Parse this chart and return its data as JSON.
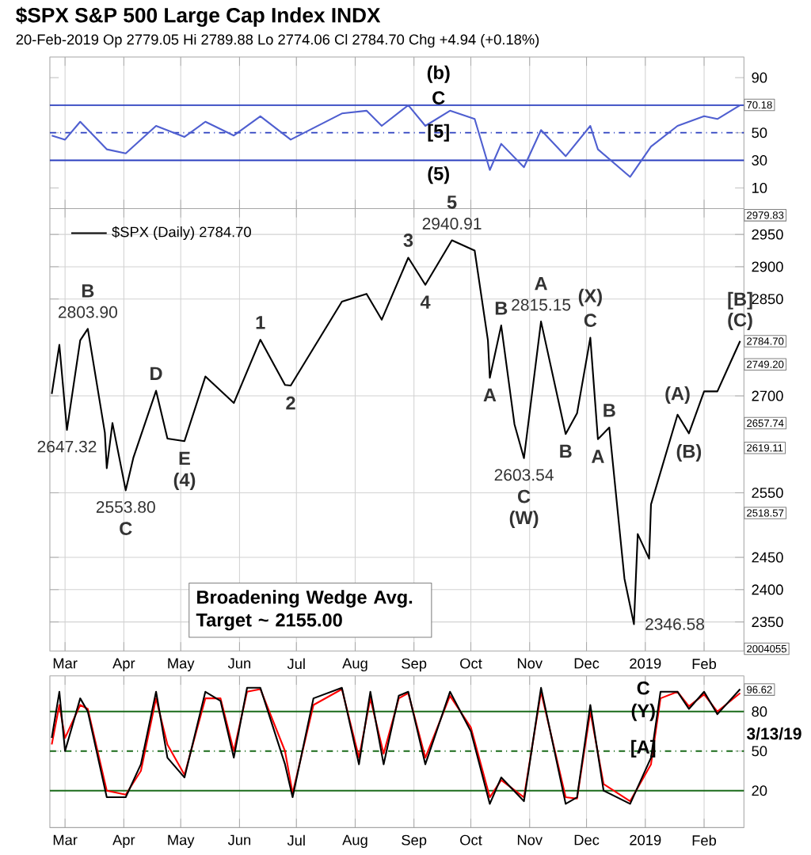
{
  "chart_data": [
    {
      "type": "line",
      "title": "$SPX S&P 500 Large Cap Index INDX",
      "subtitle": "20-Feb-2019 Op 2779.05 Hi 2789.88 Lo 2774.06 Cl 2784.70 Chg +4.94 (+0.18%)",
      "xlim": [
        "2018-02-21",
        "2019-02-22"
      ],
      "xticks": [
        {
          "value": "2018-03-01",
          "label": null
        },
        {
          "value": "2018-04-01",
          "label": null
        },
        {
          "value": "2018-05-01",
          "label": null
        },
        {
          "value": "2018-06-01",
          "label": null
        },
        {
          "value": "2018-07-01",
          "label": null
        },
        {
          "value": "2018-08-01",
          "label": null
        },
        {
          "value": "2018-09-01",
          "label": null
        },
        {
          "value": "2018-10-01",
          "label": null
        },
        {
          "value": "2018-11-01",
          "label": null
        },
        {
          "value": "2018-12-01",
          "label": null
        },
        {
          "value": "2019-01-01",
          "label": null
        },
        {
          "value": "2019-02-01",
          "label": null
        }
      ],
      "ylim": [
        -5,
        105
      ],
      "yticks": [
        10,
        30,
        50,
        70,
        90
      ],
      "tick_labels": "y",
      "grid": "x",
      "x": [
        "2018-02-22",
        "2018-03-01",
        "2018-03-09",
        "2018-03-23",
        "2018-04-02",
        "2018-04-18",
        "2018-05-03",
        "2018-05-14",
        "2018-05-29",
        "2018-06-12",
        "2018-06-28",
        "2018-07-25",
        "2018-08-07",
        "2018-08-15",
        "2018-08-29",
        "2018-09-07",
        "2018-09-20",
        "2018-10-03",
        "2018-10-11",
        "2018-10-17",
        "2018-10-29",
        "2018-11-07",
        "2018-11-20",
        "2018-12-03",
        "2018-12-07",
        "2018-12-24",
        "2019-01-04",
        "2019-01-18",
        "2019-02-01",
        "2019-02-08",
        "2019-02-20"
      ],
      "series": [
        {
          "color": "#4f5fd0",
          "values": [
            48,
            45,
            58,
            38,
            35,
            55,
            47,
            58,
            48,
            62,
            45,
            64,
            66,
            55,
            70,
            55,
            66,
            60,
            23,
            42,
            25,
            52,
            33,
            55,
            38,
            18,
            40,
            55,
            62,
            60,
            70
          ]
        }
      ],
      "ref_lines": [
        {
          "axis": "y",
          "value": 70,
          "color": "#2b3fbf"
        },
        {
          "axis": "y",
          "value": 50,
          "color": "#2b3fbf",
          "line_style": "dashed"
        },
        {
          "axis": "y",
          "value": 30,
          "color": "#2b3fbf"
        }
      ],
      "annotations": [
        "(b)",
        "C",
        "[5]",
        "(5)",
        {
          "text": "70.18",
          "x": "2019-02-22",
          "y": 70.18
        }
      ]
    },
    {
      "type": "line",
      "legend": "top left",
      "xlim": [
        "2018-02-21",
        "2019-02-22"
      ],
      "xticks": [
        {
          "value": "2018-03-01",
          "label": "Mar"
        },
        {
          "value": "2018-04-01",
          "label": "Apr"
        },
        {
          "value": "2018-05-01",
          "label": "May"
        },
        {
          "value": "2018-06-01",
          "label": "Jun"
        },
        {
          "value": "2018-07-01",
          "label": "Jul"
        },
        {
          "value": "2018-08-01",
          "label": "Aug"
        },
        {
          "value": "2018-09-01",
          "label": "Sep"
        },
        {
          "value": "2018-10-01",
          "label": "Oct"
        },
        {
          "value": "2018-11-01",
          "label": "Nov"
        },
        {
          "value": "2018-12-01",
          "label": "Dec"
        },
        {
          "value": "2019-01-01",
          "label": "2019"
        },
        {
          "value": "2019-02-01",
          "label": "Feb"
        }
      ],
      "ylim": [
        2305,
        2990
      ],
      "yticks": [
        2350,
        2400,
        2450,
        2550,
        2700,
        2850,
        2900,
        2950
      ],
      "grid": true,
      "x": [
        "2018-02-22",
        "2018-02-26",
        "2018-03-02",
        "2018-03-09",
        "2018-03-13",
        "2018-03-22",
        "2018-03-23",
        "2018-03-26",
        "2018-04-02",
        "2018-04-06",
        "2018-04-18",
        "2018-04-24",
        "2018-05-03",
        "2018-05-14",
        "2018-05-29",
        "2018-06-12",
        "2018-06-25",
        "2018-06-28",
        "2018-07-25",
        "2018-08-07",
        "2018-08-15",
        "2018-08-29",
        "2018-09-07",
        "2018-09-21",
        "2018-10-03",
        "2018-10-10",
        "2018-10-11",
        "2018-10-17",
        "2018-10-24",
        "2018-10-29",
        "2018-11-07",
        "2018-11-20",
        "2018-11-26",
        "2018-12-03",
        "2018-12-07",
        "2018-12-13",
        "2018-12-21",
        "2018-12-26",
        "2018-12-28",
        "2019-01-03",
        "2019-01-04",
        "2019-01-18",
        "2019-01-24",
        "2019-02-01",
        "2019-02-08",
        "2019-02-14",
        "2019-02-20"
      ],
      "series": [
        {
          "name": "$SPX (Daily) 2784.70",
          "color": "#000000",
          "values": [
            2703,
            2779,
            2647.32,
            2786,
            2803.9,
            2643,
            2588,
            2658,
            2553.8,
            2604,
            2708,
            2634,
            2630,
            2730,
            2689,
            2787,
            2717,
            2716,
            2846,
            2858,
            2818,
            2914,
            2872,
            2940.91,
            2925,
            2786,
            2728,
            2809,
            2656,
            2603.54,
            2815.15,
            2641,
            2673,
            2790,
            2633,
            2651,
            2417,
            2346.58,
            2486,
            2448,
            2532,
            2671,
            2642,
            2707,
            2707,
            2746,
            2785
          ]
        }
      ],
      "annotations": [
        "Broadening Wedge Avg. Target ~ 2155.00",
        "2004055",
        "2979.83",
        "2749.20",
        "2657.74",
        "2619.11",
        "2518.57",
        {
          "text": "2803.90",
          "x": "2018-03-13",
          "y": 2803.9
        },
        {
          "text": "B",
          "x": "2018-03-13",
          "y": 2803.9
        },
        {
          "text": "2647.32",
          "x": "2018-03-02",
          "y": 2647.32
        },
        {
          "text": "2553.80",
          "x": "2018-04-02",
          "y": 2553.8
        },
        {
          "text": "C",
          "x": "2018-04-02",
          "y": 2553.8
        },
        {
          "text": "D",
          "x": "2018-04-18",
          "y": 2708
        },
        {
          "text": "E",
          "x": "2018-05-03",
          "y": 2630
        },
        {
          "text": "(4)",
          "x": "2018-05-03",
          "y": 2630
        },
        {
          "text": "1",
          "x": "2018-06-12",
          "y": 2787
        },
        {
          "text": "2",
          "x": "2018-06-28",
          "y": 2716
        },
        {
          "text": "3",
          "x": "2018-08-29",
          "y": 2914
        },
        {
          "text": "4",
          "x": "2018-09-07",
          "y": 2872
        },
        {
          "text": "2940.91",
          "x": "2018-09-21",
          "y": 2940.91
        },
        {
          "text": "5",
          "x": "2018-09-21",
          "y": 2940.91
        },
        {
          "text": "A",
          "x": "2018-10-11",
          "y": 2728
        },
        {
          "text": "B",
          "x": "2018-10-17",
          "y": 2809
        },
        {
          "text": "2603.54",
          "x": "2018-10-29",
          "y": 2603.54
        },
        {
          "text": "C",
          "x": "2018-10-29",
          "y": 2603.54
        },
        {
          "text": "(W)",
          "x": "2018-10-29",
          "y": 2603.54
        },
        {
          "text": "2815.15",
          "x": "2018-11-07",
          "y": 2815.15
        },
        {
          "text": "A",
          "x": "2018-11-07",
          "y": 2815.15
        },
        {
          "text": "B",
          "x": "2018-11-20",
          "y": 2641
        },
        {
          "text": "C",
          "x": "2018-12-03",
          "y": 2790
        },
        {
          "text": "(X)",
          "x": "2018-12-03",
          "y": 2790
        },
        {
          "text": "A",
          "x": "2018-12-07",
          "y": 2633
        },
        {
          "text": "B",
          "x": "2018-12-13",
          "y": 2651
        },
        {
          "text": "2346.58",
          "x": "2018-12-26",
          "y": 2346.58
        },
        {
          "text": "(A)",
          "x": "2019-01-18",
          "y": 2671
        },
        {
          "text": "(B)",
          "x": "2019-01-24",
          "y": 2642
        },
        {
          "text": "(C)",
          "x": "2019-02-20",
          "y": 2785
        },
        {
          "text": "[B]",
          "x": "2019-02-20",
          "y": 2785
        },
        {
          "text": "2784.70",
          "x": "2019-02-22",
          "y": 2784.7
        }
      ]
    },
    {
      "type": "line",
      "xlim": [
        "2018-02-21",
        "2019-02-22"
      ],
      "xticks": [
        {
          "value": "2018-03-01",
          "label": "Mar"
        },
        {
          "value": "2018-04-01",
          "label": "Apr"
        },
        {
          "value": "2018-05-01",
          "label": "May"
        },
        {
          "value": "2018-06-01",
          "label": "Jun"
        },
        {
          "value": "2018-07-01",
          "label": "Jul"
        },
        {
          "value": "2018-08-01",
          "label": "Aug"
        },
        {
          "value": "2018-09-01",
          "label": "Sep"
        },
        {
          "value": "2018-10-01",
          "label": "Oct"
        },
        {
          "value": "2018-11-01",
          "label": "Nov"
        },
        {
          "value": "2018-12-01",
          "label": "Dec"
        },
        {
          "value": "2019-01-01",
          "label": "2019"
        },
        {
          "value": "2019-02-01",
          "label": "Feb"
        }
      ],
      "ylim": [
        -8,
        107
      ],
      "yticks": [
        20,
        50,
        80
      ],
      "grid": "x",
      "x": [
        "2018-02-22",
        "2018-02-26",
        "2018-03-01",
        "2018-03-09",
        "2018-03-13",
        "2018-03-23",
        "2018-04-02",
        "2018-04-10",
        "2018-04-18",
        "2018-04-24",
        "2018-05-03",
        "2018-05-14",
        "2018-05-22",
        "2018-05-29",
        "2018-06-05",
        "2018-06-12",
        "2018-06-25",
        "2018-06-29",
        "2018-07-10",
        "2018-07-25",
        "2018-08-03",
        "2018-08-09",
        "2018-08-16",
        "2018-08-24",
        "2018-08-29",
        "2018-09-07",
        "2018-09-20",
        "2018-10-01",
        "2018-10-11",
        "2018-10-17",
        "2018-10-29",
        "2018-11-07",
        "2018-11-20",
        "2018-11-26",
        "2018-12-03",
        "2018-12-10",
        "2018-12-24",
        "2019-01-04",
        "2019-01-09",
        "2019-01-18",
        "2019-01-24",
        "2019-02-01",
        "2019-02-08",
        "2019-02-20"
      ],
      "series": [
        {
          "color": "#ff0000",
          "values": [
            55,
            85,
            60,
            85,
            82,
            20,
            17,
            35,
            90,
            55,
            32,
            90,
            90,
            50,
            95,
            97,
            50,
            18,
            85,
            97,
            45,
            90,
            48,
            90,
            94,
            45,
            92,
            68,
            15,
            28,
            15,
            95,
            15,
            14,
            80,
            25,
            12,
            40,
            90,
            95,
            84,
            93,
            80,
            94
          ]
        },
        {
          "color": "#000000",
          "values": [
            60,
            95,
            50,
            90,
            80,
            15,
            15,
            40,
            95,
            45,
            30,
            95,
            88,
            45,
            98,
            98,
            40,
            15,
            90,
            98,
            40,
            95,
            40,
            92,
            95,
            40,
            95,
            65,
            10,
            30,
            12,
            98,
            10,
            15,
            85,
            20,
            10,
            45,
            95,
            95,
            82,
            95,
            78,
            97
          ]
        }
      ],
      "ref_lines": [
        {
          "axis": "y",
          "value": 80,
          "color": "#1a6b1a"
        },
        {
          "axis": "y",
          "value": 50,
          "color": "#1a6b1a",
          "line_style": "dashed"
        },
        {
          "axis": "y",
          "value": 20,
          "color": "#1a6b1a"
        }
      ],
      "annotations": [
        "3/13/19",
        "C",
        "(Y)",
        "[A]",
        {
          "text": "96.62",
          "x": "2019-02-22",
          "y": 96.62
        }
      ]
    }
  ]
}
